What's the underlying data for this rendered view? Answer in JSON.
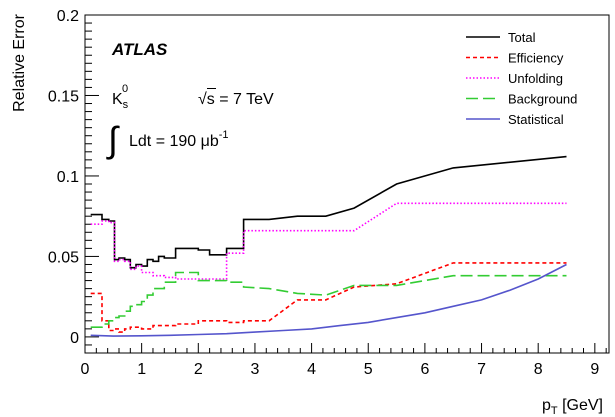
{
  "chart_data": {
    "type": "line",
    "ylabel": "Relative Error",
    "xlabel_main": "p",
    "xlabel_sub": "T",
    "xlabel_unit": " [GeV]",
    "xlim": [
      0,
      9.25
    ],
    "ylim": [
      -0.01,
      0.2
    ],
    "xticks": [
      0,
      1,
      2,
      3,
      4,
      5,
      6,
      7,
      8,
      9
    ],
    "yticks": [
      0,
      0.05,
      0.1,
      0.15,
      0.2
    ],
    "grid": false,
    "legend_position": "top-right",
    "annotations": {
      "experiment": "ATLAS",
      "particle": "K",
      "particle_sub": "s",
      "particle_sup": "0",
      "energy_root": "√",
      "energy": "s = 7 TeV",
      "integral": "∫",
      "lumi": "Ldt = 190 μb",
      "lumi_sup": "-1"
    },
    "series": [
      {
        "name": "Total",
        "color": "#000000",
        "dash": "solid",
        "x": [
          0.1,
          0.3,
          0.3,
          0.42,
          0.42,
          0.52,
          0.52,
          0.6,
          0.6,
          0.7,
          0.7,
          0.8,
          0.8,
          0.9,
          0.9,
          1.0,
          1.0,
          1.1,
          1.1,
          1.2,
          1.2,
          1.3,
          1.3,
          1.4,
          1.4,
          1.6,
          1.6,
          2.0,
          2.0,
          2.2,
          2.2,
          2.5,
          2.5,
          2.8,
          2.8,
          3.25,
          3.75,
          4.25,
          4.75,
          5.5,
          6.5,
          8.5
        ],
        "y": [
          0.076,
          0.076,
          0.073,
          0.073,
          0.072,
          0.072,
          0.048,
          0.048,
          0.049,
          0.049,
          0.048,
          0.048,
          0.043,
          0.043,
          0.045,
          0.045,
          0.044,
          0.044,
          0.048,
          0.048,
          0.047,
          0.047,
          0.05,
          0.05,
          0.049,
          0.049,
          0.055,
          0.055,
          0.054,
          0.054,
          0.051,
          0.051,
          0.055,
          0.055,
          0.073,
          0.073,
          0.075,
          0.075,
          0.08,
          0.095,
          0.105,
          0.112
        ]
      },
      {
        "name": "Efficiency",
        "color": "#ff0000",
        "dash": "4,3",
        "x": [
          0.1,
          0.3,
          0.3,
          0.42,
          0.42,
          0.52,
          0.52,
          0.6,
          0.6,
          0.7,
          0.7,
          0.8,
          0.8,
          1.0,
          1.0,
          1.2,
          1.2,
          1.6,
          1.6,
          2.0,
          2.0,
          2.5,
          2.5,
          2.8,
          2.8,
          3.25,
          3.75,
          4.25,
          4.75,
          5.5,
          6.5,
          8.5
        ],
        "y": [
          0.027,
          0.027,
          0.01,
          0.01,
          0.004,
          0.004,
          0.005,
          0.005,
          0.003,
          0.003,
          0.005,
          0.005,
          0.006,
          0.006,
          0.005,
          0.005,
          0.007,
          0.007,
          0.008,
          0.008,
          0.01,
          0.01,
          0.009,
          0.009,
          0.01,
          0.01,
          0.023,
          0.023,
          0.031,
          0.033,
          0.046,
          0.046
        ]
      },
      {
        "name": "Unfolding",
        "color": "#ff00ff",
        "dash": "1.5,2",
        "x": [
          0.1,
          0.3,
          0.3,
          0.42,
          0.42,
          0.52,
          0.52,
          0.6,
          0.6,
          0.7,
          0.7,
          0.8,
          0.8,
          0.9,
          0.9,
          1.0,
          1.0,
          1.2,
          1.2,
          1.4,
          1.4,
          1.6,
          1.6,
          2.0,
          2.0,
          2.5,
          2.5,
          2.8,
          2.8,
          3.25,
          3.75,
          4.25,
          4.75,
          5.5,
          6.5,
          8.5
        ],
        "y": [
          0.07,
          0.07,
          0.072,
          0.072,
          0.071,
          0.071,
          0.047,
          0.047,
          0.048,
          0.048,
          0.047,
          0.047,
          0.042,
          0.042,
          0.044,
          0.044,
          0.04,
          0.04,
          0.038,
          0.038,
          0.037,
          0.037,
          0.036,
          0.036,
          0.036,
          0.036,
          0.052,
          0.052,
          0.066,
          0.066,
          0.066,
          0.066,
          0.066,
          0.083,
          0.083,
          0.083
        ]
      },
      {
        "name": "Background",
        "color": "#33cc33",
        "dash": "12,5",
        "x": [
          0.1,
          0.3,
          0.3,
          0.42,
          0.42,
          0.52,
          0.52,
          0.6,
          0.6,
          0.7,
          0.7,
          0.8,
          0.8,
          0.9,
          0.9,
          1.0,
          1.0,
          1.1,
          1.1,
          1.2,
          1.2,
          1.4,
          1.4,
          1.6,
          1.6,
          2.0,
          2.0,
          2.5,
          2.5,
          2.8,
          2.8,
          3.25,
          3.75,
          4.25,
          4.75,
          5.5,
          6.5,
          8.5
        ],
        "y": [
          0.006,
          0.006,
          0.008,
          0.008,
          0.01,
          0.01,
          0.012,
          0.012,
          0.013,
          0.013,
          0.016,
          0.016,
          0.019,
          0.019,
          0.02,
          0.02,
          0.022,
          0.022,
          0.026,
          0.026,
          0.03,
          0.03,
          0.034,
          0.034,
          0.04,
          0.04,
          0.035,
          0.035,
          0.034,
          0.034,
          0.031,
          0.03,
          0.027,
          0.026,
          0.032,
          0.032,
          0.038,
          0.038
        ]
      },
      {
        "name": "Statistical",
        "color": "#5555cc",
        "dash": "solid",
        "x": [
          0.1,
          0.5,
          1.0,
          1.5,
          2.0,
          2.5,
          3.0,
          3.5,
          4.0,
          4.5,
          5.0,
          5.5,
          6.0,
          6.5,
          7.0,
          7.5,
          8.0,
          8.5
        ],
        "y": [
          0.001,
          0.0005,
          0.0007,
          0.001,
          0.0015,
          0.002,
          0.003,
          0.004,
          0.005,
          0.007,
          0.009,
          0.012,
          0.015,
          0.019,
          0.023,
          0.029,
          0.036,
          0.045
        ]
      }
    ]
  }
}
